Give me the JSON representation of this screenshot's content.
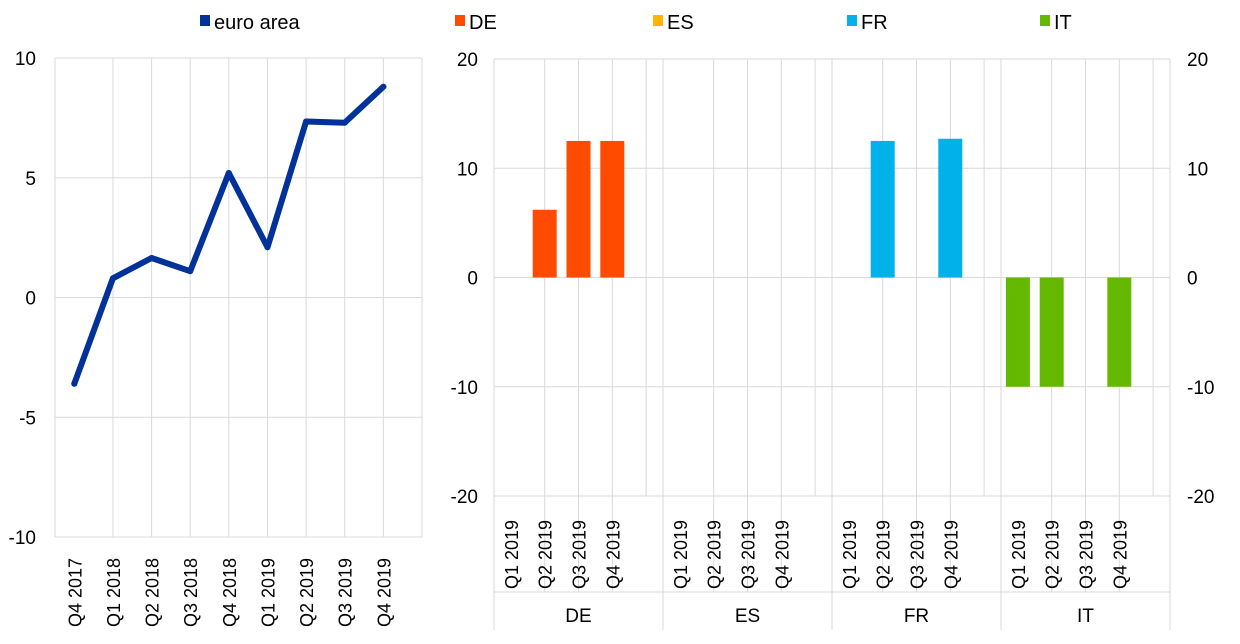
{
  "legend": [
    {
      "label": "euro area",
      "color": "#003299"
    },
    {
      "label": "DE",
      "color": "#ff4b00"
    },
    {
      "label": "ES",
      "color": "#ffb400"
    },
    {
      "label": "FR",
      "color": "#00b1ea"
    },
    {
      "label": "IT",
      "color": "#65b800"
    }
  ],
  "chart_data": [
    {
      "type": "line",
      "title": "",
      "xlabel": "",
      "ylabel": "",
      "x": [
        "Q4 2017",
        "Q1 2018",
        "Q2 2018",
        "Q3 2018",
        "Q4 2018",
        "Q1 2019",
        "Q2 2019",
        "Q3 2019",
        "Q4 2019"
      ],
      "series": [
        {
          "name": "euro area",
          "color": "#003299",
          "values": [
            -3.6,
            0.8,
            1.65,
            1.1,
            5.2,
            2.1,
            7.35,
            7.3,
            8.8
          ]
        }
      ],
      "ylim": [
        -10,
        10
      ],
      "yticks": [
        10,
        5,
        0,
        -5,
        -10
      ],
      "grid": true
    },
    {
      "type": "bar",
      "title": "",
      "xlabel": "",
      "ylabel": "",
      "ylim": [
        -20,
        20
      ],
      "yticks": [
        20,
        10,
        0,
        -10,
        -20
      ],
      "grid": true,
      "groups": [
        {
          "name": "DE",
          "color": "#ff4b00",
          "categories": [
            "Q1 2019",
            "Q2 2019",
            "Q3 2019",
            "Q4 2019"
          ],
          "values": [
            0,
            6.2,
            12.5,
            12.5
          ]
        },
        {
          "name": "ES",
          "color": "#ffb400",
          "categories": [
            "Q1 2019",
            "Q2 2019",
            "Q3 2019",
            "Q4 2019"
          ],
          "values": [
            0,
            0,
            0,
            0
          ]
        },
        {
          "name": "FR",
          "color": "#00b1ea",
          "categories": [
            "Q1 2019",
            "Q2 2019",
            "Q3 2019",
            "Q4 2019"
          ],
          "values": [
            0,
            12.5,
            0,
            12.7
          ]
        },
        {
          "name": "IT",
          "color": "#65b800",
          "categories": [
            "Q1 2019",
            "Q2 2019",
            "Q3 2019",
            "Q4 2019"
          ],
          "values": [
            -10,
            -10,
            0,
            -10
          ]
        }
      ]
    }
  ]
}
